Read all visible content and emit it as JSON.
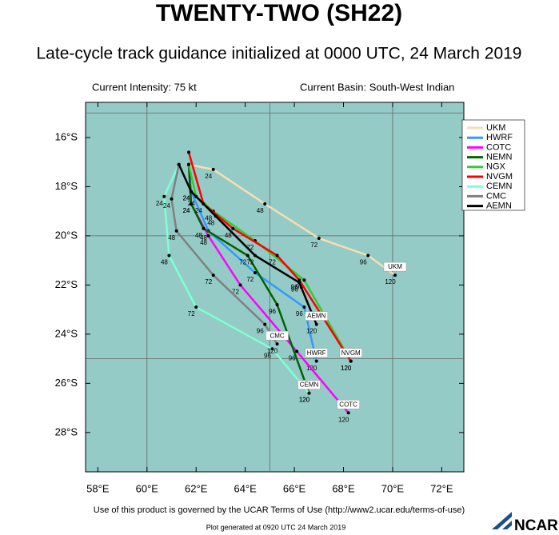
{
  "chart_data": {
    "type": "track",
    "title": "TWENTY-TWO (SH22)",
    "subtitle": "Late-cycle track guidance initialized at 0000 UTC, 24 March 2019",
    "intensity": "Current Intensity: 75 kt",
    "basin": "Current Basin: South-West Indian",
    "footer": "Use of this product is governed by the UCAR Terms of Use (http://www2.ucar.edu/terms-of-use)",
    "generated": "Plot generated at 0920 UTC  24 March 2019",
    "logo": "NCAR",
    "background": "#94cbc6",
    "xlim": [
      57.5,
      72.9
    ],
    "ylim": [
      -29.6,
      -14.57
    ],
    "xticks": [
      {
        "value": 58,
        "label": "58°E"
      },
      {
        "value": 60,
        "label": "60°E"
      },
      {
        "value": 62,
        "label": "62°E"
      },
      {
        "value": 64,
        "label": "64°E"
      },
      {
        "value": 66,
        "label": "66°E"
      },
      {
        "value": 68,
        "label": "68°E"
      },
      {
        "value": 70,
        "label": "70°E"
      },
      {
        "value": 72,
        "label": "72°E"
      }
    ],
    "yticks": [
      {
        "value": -16,
        "label": "16°S"
      },
      {
        "value": -18,
        "label": "18°S"
      },
      {
        "value": -20,
        "label": "20°S"
      },
      {
        "value": -22,
        "label": "22°S"
      },
      {
        "value": -24,
        "label": "24°S"
      },
      {
        "value": -26,
        "label": "26°S"
      },
      {
        "value": -28,
        "label": "28°S"
      }
    ],
    "grid_lon": [
      60,
      65,
      70
    ],
    "grid_lat": [
      -15,
      -20,
      -25
    ],
    "series": [
      {
        "name": "UKM",
        "color": "#f5deb3",
        "hours": [
          null,
          24,
          48,
          72,
          96,
          120
        ],
        "lon": [
          61.7,
          62.7,
          64.8,
          67.0,
          69.0,
          70.1
        ],
        "lat": [
          -17.1,
          -17.3,
          -18.7,
          -20.1,
          -20.8,
          -21.6
        ]
      },
      {
        "name": "HWRF",
        "color": "#3399ff",
        "hours": [
          null,
          24,
          48,
          72,
          96,
          120
        ],
        "lon": [
          61.7,
          61.8,
          62.5,
          64.4,
          66.4,
          66.9
        ],
        "lat": [
          -17.1,
          -18.2,
          -19.8,
          -21.5,
          -22.9,
          -25.1
        ]
      },
      {
        "name": "COTC",
        "color": "#ff00ff",
        "hours": [
          null,
          24,
          48,
          72,
          96,
          120
        ],
        "lon": [
          61.7,
          61.8,
          62.5,
          63.8,
          66.1,
          68.2
        ],
        "lat": [
          -17.1,
          -18.7,
          -20.0,
          -22.0,
          -24.7,
          -27.2
        ]
      },
      {
        "name": "NEMN",
        "color": "#006400",
        "hours": [
          null,
          24,
          48,
          72,
          96,
          120
        ],
        "lon": [
          61.7,
          61.8,
          62.3,
          64.1,
          65.3,
          66.6
        ],
        "lat": [
          -17.1,
          -18.7,
          -19.7,
          -20.8,
          -22.8,
          -26.4
        ]
      },
      {
        "name": "NGX",
        "color": "#33cc33",
        "hours": [
          null,
          24,
          48,
          72,
          96,
          120
        ],
        "lon": [
          61.7,
          62.0,
          62.7,
          64.4,
          66.4,
          68.3
        ],
        "lat": [
          -17.1,
          -18.4,
          -19.0,
          -20.2,
          -21.8,
          -25.1
        ]
      },
      {
        "name": "NVGM",
        "color": "#ff0000",
        "hours": [
          null,
          24,
          48,
          72,
          96,
          120
        ],
        "lon": [
          61.7,
          62.3,
          63.5,
          65.3,
          66.2,
          68.3
        ],
        "lat": [
          -16.6,
          -18.7,
          -19.7,
          -20.8,
          -21.8,
          -25.1
        ]
      },
      {
        "name": "CEMN",
        "color": "#7fffd4",
        "hours": [
          null,
          24,
          48,
          72,
          96,
          120
        ],
        "lon": [
          61.3,
          60.7,
          60.9,
          62.0,
          65.1,
          66.6
        ],
        "lat": [
          -17.1,
          -18.4,
          -20.8,
          -22.9,
          -24.6,
          -26.4
        ]
      },
      {
        "name": "CMC",
        "color": "#808080",
        "hours": [
          null,
          24,
          48,
          72,
          96,
          120
        ],
        "lon": [
          61.3,
          61.0,
          61.2,
          62.7,
          64.8,
          65.3
        ],
        "lat": [
          -17.1,
          -18.5,
          -19.8,
          -21.6,
          -23.6,
          -24.4
        ]
      },
      {
        "name": "AEMN",
        "color": "#000000",
        "hours": [
          null,
          24,
          48,
          72,
          96,
          120
        ],
        "lon": [
          61.3,
          61.8,
          62.8,
          64.4,
          66.2,
          66.9
        ],
        "lat": [
          -17.1,
          -18.2,
          -19.2,
          -20.8,
          -21.9,
          -23.6
        ]
      }
    ]
  }
}
